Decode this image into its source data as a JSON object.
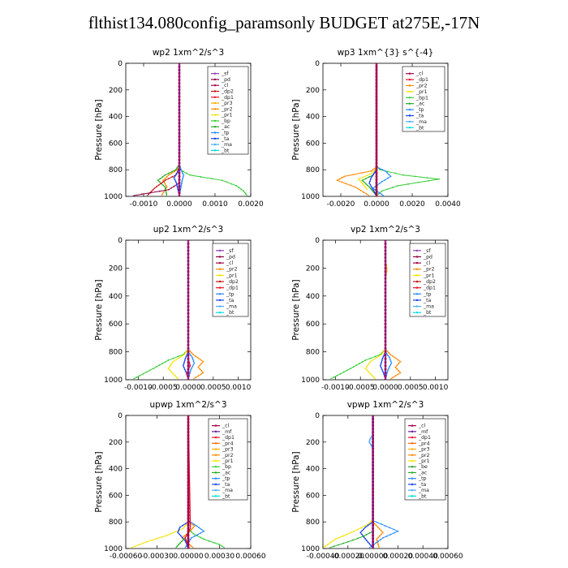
{
  "title": "flthist134.080config_paramsonly  BUDGET at275E,-17N",
  "colors": {
    "_sf": "#8e3fb0",
    "_pd": "#8a0040",
    "_cl": "#a6004a",
    "_dp1": "#e8102a",
    "_dp2": "#cc1010",
    "_pr1": "#f4e200",
    "_pr2": "#ff8800",
    "_pr3": "#ffaa00",
    "_pr4": "#ff6600",
    "_bp": "#33cc33",
    "_ac": "#22aa22",
    "_tp": "#2288ff",
    "_ta": "#1040ee",
    "_ma": "#44aaff",
    "_bt": "#00dddd",
    "_mf": "#6a1b9a",
    "_be": "#2ea02e"
  },
  "chart_data": [
    {
      "type": "line",
      "title": "wp2  1xm^2/s^3",
      "ylabel": "Pressure [hPa]",
      "ylim": [
        1000,
        0
      ],
      "xlim": [
        -0.0015,
        0.002
      ],
      "xticks": [
        "-0.0010",
        "0.0000",
        "0.0010",
        "0.0020"
      ],
      "xtick_values": [
        -0.001,
        0,
        0.001,
        0.002
      ],
      "yticks": [
        "0",
        "200",
        "400",
        "600",
        "800",
        "1000"
      ],
      "legend": [
        "_sf",
        "_pd",
        "_cl",
        "_dp2",
        "_dp1",
        "_pr3",
        "_pr2",
        "_pr1",
        "_bp",
        "_ac",
        "_tp",
        "_ta",
        "_ma",
        "_bt"
      ],
      "series": [
        {
          "key": "_bp",
          "x": [
            0,
            0,
            0,
            2e-05,
            0.0003,
            0.0012,
            0.0016,
            0.0018,
            0.0019
          ],
          "y": [
            0,
            700,
            780,
            800,
            840,
            880,
            920,
            960,
            995
          ]
        },
        {
          "key": "_pr2",
          "x": [
            0,
            0,
            0,
            -6e-05,
            -0.0003,
            -0.00045,
            -0.00035,
            -0.0005
          ],
          "y": [
            0,
            700,
            780,
            800,
            840,
            880,
            930,
            995
          ]
        },
        {
          "key": "_ac",
          "x": [
            0,
            0,
            -0.0001,
            -0.0004,
            -0.0006,
            -0.0004,
            -0.00035
          ],
          "y": [
            0,
            760,
            800,
            840,
            880,
            930,
            995
          ]
        },
        {
          "key": "_dp2",
          "x": [
            0,
            0,
            -0.0001,
            -0.0004,
            -0.0007,
            -0.0009
          ],
          "y": [
            0,
            790,
            840,
            880,
            940,
            995
          ]
        },
        {
          "key": "_pd",
          "x": [
            0,
            0,
            -0.0003,
            -0.0013
          ],
          "y": [
            0,
            900,
            950,
            995
          ]
        },
        {
          "key": "_tp",
          "x": [
            0,
            0,
            5e-05,
            0.00012,
            8e-05,
            0
          ],
          "y": [
            0,
            760,
            800,
            840,
            880,
            995
          ]
        },
        {
          "key": "_ta",
          "x": [
            0,
            0,
            -5e-05,
            -0.00015,
            -8e-05,
            0
          ],
          "y": [
            0,
            780,
            820,
            860,
            900,
            995
          ]
        },
        {
          "key": "_sf",
          "x": [
            0,
            0
          ],
          "y": [
            0,
            1000
          ]
        }
      ]
    },
    {
      "type": "line",
      "title": "wp3  1xm^{3} s^{-4}",
      "ylabel": "Pressure [hPa]",
      "ylim": [
        1000,
        0
      ],
      "xlim": [
        -0.003,
        0.004
      ],
      "xticks": [
        "-0.0020",
        "0.0000",
        "0.0020",
        "0.0040"
      ],
      "xtick_values": [
        -0.002,
        0,
        0.002,
        0.004
      ],
      "yticks": [
        "0",
        "200",
        "400",
        "600",
        "800",
        "1000"
      ],
      "legend": [
        "_cl",
        "_dp1",
        "_pr2",
        "_pr1",
        "_bp1",
        "_ac",
        "_tp",
        "_ta",
        "_ma",
        "_bt"
      ],
      "series": [
        {
          "key": "_bp",
          "x": [
            0,
            0,
            0.0002,
            0.0015,
            0.0035,
            0.0012,
            0.0003,
            0
          ],
          "y": [
            0,
            770,
            800,
            840,
            870,
            920,
            960,
            995
          ]
        },
        {
          "key": "_pr2",
          "x": [
            0,
            0,
            -0.0003,
            -0.0018,
            -0.0022,
            -0.0012,
            -0.0004
          ],
          "y": [
            0,
            780,
            810,
            850,
            880,
            930,
            995
          ]
        },
        {
          "key": "_pr1",
          "x": [
            0,
            0,
            -0.0003,
            -0.001,
            -0.0005
          ],
          "y": [
            0,
            790,
            830,
            870,
            950
          ]
        },
        {
          "key": "_ac",
          "x": [
            0,
            0,
            -0.0002,
            -0.0008,
            -0.0004,
            0
          ],
          "y": [
            0,
            800,
            840,
            880,
            930,
            995
          ]
        },
        {
          "key": "_tp",
          "x": [
            0,
            0,
            0.0005,
            0.0008,
            0.0003,
            -0.0002,
            0.0004
          ],
          "y": [
            0,
            780,
            810,
            850,
            890,
            940,
            995
          ]
        },
        {
          "key": "_ta",
          "x": [
            0,
            0,
            -0.0003,
            -0.0004,
            0
          ],
          "y": [
            0,
            800,
            860,
            900,
            995
          ]
        },
        {
          "key": "_cl",
          "x": [
            0,
            0
          ],
          "y": [
            0,
            1000
          ]
        }
      ]
    },
    {
      "type": "line",
      "title": "up2  1xm^2/s^3",
      "ylabel": "Pressure [hPa]",
      "ylim": [
        1000,
        0
      ],
      "xlim": [
        -0.00125,
        0.00125
      ],
      "xticks": [
        "-0.0010",
        "-0.0005",
        "0.0000",
        "0.0005",
        "0.0010"
      ],
      "xtick_values": [
        -0.001,
        -0.0005,
        0,
        0.0005,
        0.001
      ],
      "yticks": [
        "0",
        "200",
        "400",
        "600",
        "800",
        "1000"
      ],
      "legend": [
        "_sf",
        "_pd",
        "_cl",
        "_pr2",
        "_pr1",
        "_dp2",
        "_dp1",
        "_tp",
        "_ta",
        "_ma",
        "_bt"
      ],
      "series": [
        {
          "key": "_bp",
          "x": [
            0,
            0,
            -0.0001,
            -0.0004,
            -0.0007,
            -0.0011
          ],
          "y": [
            0,
            780,
            820,
            860,
            920,
            995
          ]
        },
        {
          "key": "_pr2",
          "x": [
            0,
            0,
            0.0001,
            0.0003,
            0.0002,
            0.0003,
            0.0001
          ],
          "y": [
            0,
            780,
            820,
            870,
            910,
            950,
            995
          ]
        },
        {
          "key": "_pr1",
          "x": [
            0,
            0,
            -8e-05,
            -0.0003,
            -0.0004,
            -0.0002
          ],
          "y": [
            0,
            780,
            820,
            870,
            920,
            995
          ]
        },
        {
          "key": "_tp",
          "x": [
            0,
            0,
            8e-05,
            0.00012,
            5e-05,
            0
          ],
          "y": [
            0,
            800,
            840,
            880,
            930,
            995
          ]
        },
        {
          "key": "_ta",
          "x": [
            0,
            0,
            -6e-05,
            -0.0001,
            -4e-05,
            0
          ],
          "y": [
            0,
            800,
            850,
            900,
            950,
            995
          ]
        },
        {
          "key": "_dp1",
          "x": [
            0,
            0,
            4e-05,
            -3e-05,
            0
          ],
          "y": [
            0,
            850,
            900,
            950,
            995
          ]
        },
        {
          "key": "_sf",
          "x": [
            0,
            0
          ],
          "y": [
            0,
            1000
          ]
        }
      ]
    },
    {
      "type": "line",
      "title": "vp2  1xm^2/s^3",
      "ylabel": "Pressure [hPa]",
      "ylim": [
        1000,
        0
      ],
      "xlim": [
        -0.00125,
        0.00125
      ],
      "xticks": [
        "-0.0010",
        "-0.0005",
        "0.0000",
        "0.0005",
        "0.0010"
      ],
      "xtick_values": [
        -0.001,
        -0.0005,
        0,
        0.0005,
        0.001
      ],
      "yticks": [
        "0",
        "200",
        "400",
        "600",
        "800",
        "1000"
      ],
      "legend": [
        "_sf",
        "_pd",
        "_cl",
        "_pr2",
        "_pr1",
        "_dp2",
        "_dp1",
        "_tp",
        "_ta",
        "_ma",
        "_bt"
      ],
      "series": [
        {
          "key": "_bp",
          "x": [
            0,
            0,
            -0.0001,
            -0.0004,
            -0.0007,
            -0.0011
          ],
          "y": [
            0,
            780,
            820,
            860,
            920,
            995
          ]
        },
        {
          "key": "_pr2",
          "x": [
            0,
            0,
            0.0001,
            0.0003,
            0.0002,
            0.0003,
            0.0001
          ],
          "y": [
            0,
            780,
            820,
            870,
            910,
            950,
            995
          ]
        },
        {
          "key": "_pr1",
          "x": [
            0,
            0,
            -8e-05,
            -0.0003,
            -0.0004,
            -0.0002
          ],
          "y": [
            0,
            780,
            820,
            870,
            920,
            995
          ]
        },
        {
          "key": "_tp",
          "x": [
            0,
            0,
            8e-05,
            0.00012,
            5e-05,
            0
          ],
          "y": [
            0,
            800,
            840,
            880,
            930,
            995
          ]
        },
        {
          "key": "_ta",
          "x": [
            0,
            0,
            -6e-05,
            -0.0001,
            -4e-05,
            0
          ],
          "y": [
            0,
            800,
            850,
            900,
            950,
            995
          ]
        },
        {
          "key": "_pr3",
          "x": [
            0,
            2e-05,
            3e-05,
            2e-05,
            0
          ],
          "y": [
            150,
            180,
            210,
            240,
            270
          ]
        },
        {
          "key": "_sf",
          "x": [
            0,
            0
          ],
          "y": [
            0,
            1000
          ]
        }
      ]
    },
    {
      "type": "line",
      "title": "upwp  1xm^2/s^3",
      "ylabel": "Pressure [hPa]",
      "ylim": [
        1000,
        0
      ],
      "xlim": [
        -0.0006,
        0.0006
      ],
      "xticks": [
        "-0.00060",
        "-0.00030",
        "0.00000",
        "0.00030",
        "0.00060"
      ],
      "xtick_values": [
        -0.0006,
        -0.0003,
        0,
        0.0003,
        0.0006
      ],
      "yticks": [
        "0",
        "200",
        "400",
        "600",
        "800",
        "1000"
      ],
      "legend": [
        "_cl",
        "_mf",
        "_dp1",
        "_pr4",
        "_pr3",
        "_pr2",
        "_pr1",
        "_bp",
        "_ac",
        "_tp",
        "_ta",
        "_ma",
        "_bt"
      ],
      "series": [
        {
          "key": "_pr1",
          "x": [
            0,
            0,
            -5e-05,
            -0.0002,
            -0.0004,
            -0.00055
          ],
          "y": [
            0,
            800,
            850,
            900,
            950,
            995
          ]
        },
        {
          "key": "_pr2",
          "x": [
            0,
            0,
            6e-05,
            2e-05,
            -6e-05,
            5e-05
          ],
          "y": [
            0,
            800,
            830,
            870,
            920,
            995
          ]
        },
        {
          "key": "_bp",
          "x": [
            0,
            0,
            5e-05,
            0.00015,
            0.0003,
            0.00035
          ],
          "y": [
            0,
            850,
            890,
            930,
            970,
            995
          ]
        },
        {
          "key": "_tp",
          "x": [
            0,
            0,
            8e-05,
            0.00015,
            3e-05,
            -3e-05
          ],
          "y": [
            0,
            790,
            830,
            870,
            920,
            995
          ]
        },
        {
          "key": "_ta",
          "x": [
            0,
            0,
            -8e-05,
            -0.0001,
            -3e-05,
            0
          ],
          "y": [
            0,
            800,
            840,
            880,
            940,
            995
          ]
        },
        {
          "key": "_ac",
          "x": [
            0,
            0,
            -3e-05,
            -8e-05,
            -0.00012
          ],
          "y": [
            0,
            880,
            920,
            960,
            995
          ]
        },
        {
          "key": "_dp1",
          "x": [
            0,
            2e-05,
            -3e-05,
            1e-05
          ],
          "y": [
            0,
            850,
            920,
            995
          ]
        },
        {
          "key": "_cl",
          "x": [
            0,
            0
          ],
          "y": [
            0,
            1000
          ]
        }
      ]
    },
    {
      "type": "line",
      "title": "vpwp  1xm^2/s^3",
      "ylabel": "Pressure [hPa]",
      "ylim": [
        1000,
        0
      ],
      "xlim": [
        -0.0004,
        0.0006
      ],
      "xticks": [
        "-0.00040",
        "-0.00020",
        "0.00000",
        "0.00020",
        "0.00040",
        "0.00060"
      ],
      "xtick_values": [
        -0.0004,
        -0.0002,
        0,
        0.0002,
        0.0004,
        0.0006
      ],
      "yticks": [
        "0",
        "200",
        "400",
        "600",
        "800",
        "1000"
      ],
      "legend": [
        "_cl",
        "_mf",
        "_dp1",
        "_pr4",
        "_pr3",
        "_pr2",
        "_pr1",
        "_be",
        "_ac",
        "_tp",
        "_ta",
        "_ma",
        "_bt"
      ],
      "series": [
        {
          "key": "_pr1",
          "x": [
            0,
            0,
            -4e-05,
            -0.00015,
            -0.0003,
            -0.0004
          ],
          "y": [
            0,
            780,
            820,
            870,
            930,
            995
          ]
        },
        {
          "key": "_pr2",
          "x": [
            0,
            0,
            4e-05,
            8e-05,
            3e-05,
            5e-05
          ],
          "y": [
            0,
            800,
            840,
            880,
            930,
            995
          ]
        },
        {
          "key": "_tp",
          "x": [
            0,
            0,
            0.0001,
            0.0002,
            8e-05,
            -3e-05
          ],
          "y": [
            0,
            790,
            830,
            870,
            920,
            995
          ]
        },
        {
          "key": "_ta",
          "x": [
            0,
            0,
            -6e-05,
            -0.0001,
            -5e-05,
            0
          ],
          "y": [
            0,
            800,
            840,
            880,
            940,
            995
          ]
        },
        {
          "key": "_ac",
          "x": [
            0,
            0,
            -8e-05,
            -0.0002,
            -0.00035
          ],
          "y": [
            0,
            870,
            910,
            950,
            995
          ]
        },
        {
          "key": "_ma",
          "x": [
            0,
            -2e-05,
            -3e-05,
            -1e-05,
            0
          ],
          "y": [
            150,
            170,
            200,
            230,
            250
          ]
        },
        {
          "key": "_mf",
          "x": [
            0,
            0
          ],
          "y": [
            0,
            1000
          ]
        }
      ]
    }
  ]
}
